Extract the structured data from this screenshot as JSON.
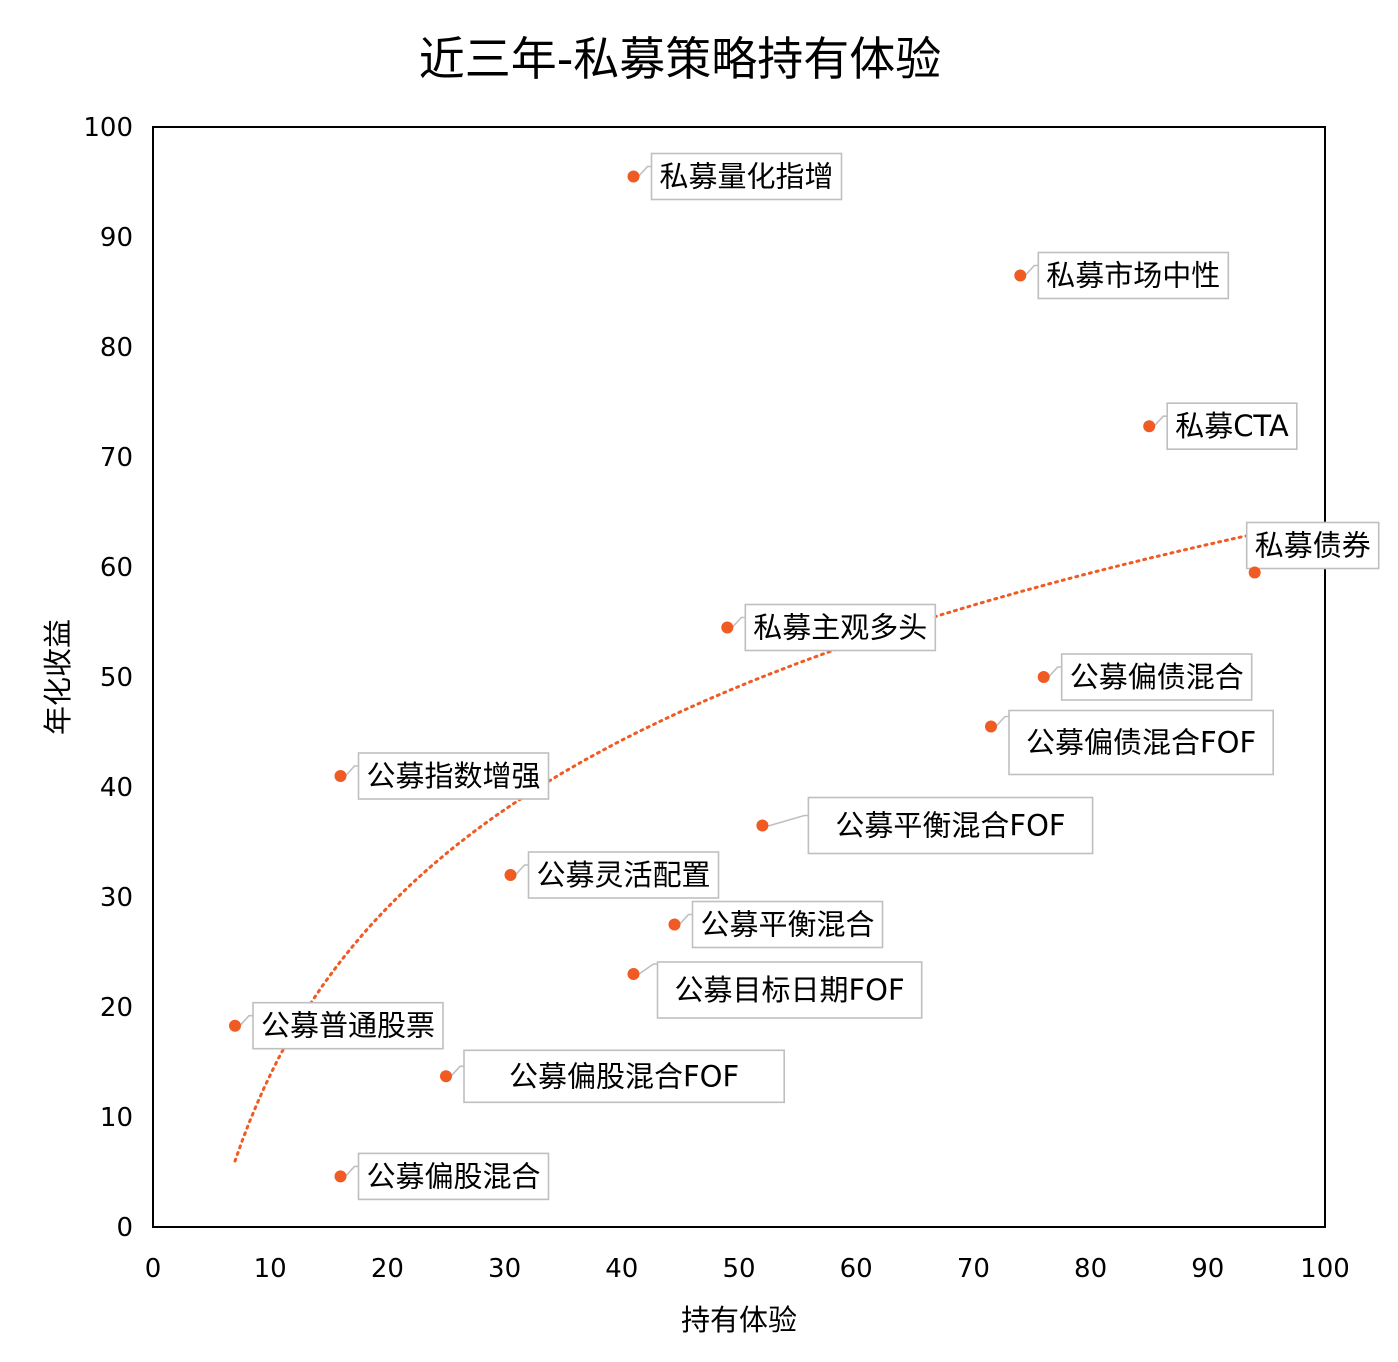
{
  "chart_data": {
    "type": "scatter",
    "title": "近三年-私募策略持有体验",
    "xlabel": "持有体验",
    "ylabel": "年化收益",
    "xlim": [
      0,
      100
    ],
    "ylim": [
      0,
      100
    ],
    "x_ticks": [
      "0",
      "10",
      "20",
      "30",
      "40",
      "50",
      "60",
      "70",
      "80",
      "90",
      "100"
    ],
    "y_ticks": [
      "0",
      "10",
      "20",
      "30",
      "40",
      "50",
      "60",
      "70",
      "80",
      "90",
      "100"
    ],
    "grid": false,
    "legend": "none",
    "marker_color": "#f05a23",
    "trendline": {
      "type": "logarithmic",
      "color": "#f05a23",
      "x_range": [
        7,
        94
      ],
      "y_start": 6,
      "y_end": 63
    },
    "points": [
      {
        "label": "私募量化指增",
        "x": 41,
        "y": 95.5
      },
      {
        "label": "私募市场中性",
        "x": 74,
        "y": 86.5
      },
      {
        "label": "私募CTA",
        "x": 85,
        "y": 72.8
      },
      {
        "label": "私募债券",
        "x": 94,
        "y": 59.5
      },
      {
        "label": "私募主观多头",
        "x": 49,
        "y": 54.5
      },
      {
        "label": "公募偏债混合",
        "x": 76,
        "y": 50
      },
      {
        "label": "公募偏债混合FOF",
        "x": 71.5,
        "y": 45.5
      },
      {
        "label": "公募指数增强",
        "x": 16,
        "y": 41
      },
      {
        "label": "公募平衡混合FOF",
        "x": 52,
        "y": 36.5
      },
      {
        "label": "公募灵活配置",
        "x": 30.5,
        "y": 32
      },
      {
        "label": "公募平衡混合",
        "x": 44.5,
        "y": 27.5
      },
      {
        "label": "公募目标日期FOF",
        "x": 41,
        "y": 23
      },
      {
        "label": "公募普通股票",
        "x": 7,
        "y": 18.3
      },
      {
        "label": "公募偏股混合FOF",
        "x": 25,
        "y": 13.7
      },
      {
        "label": "公募偏股混合",
        "x": 16,
        "y": 4.6
      }
    ]
  }
}
